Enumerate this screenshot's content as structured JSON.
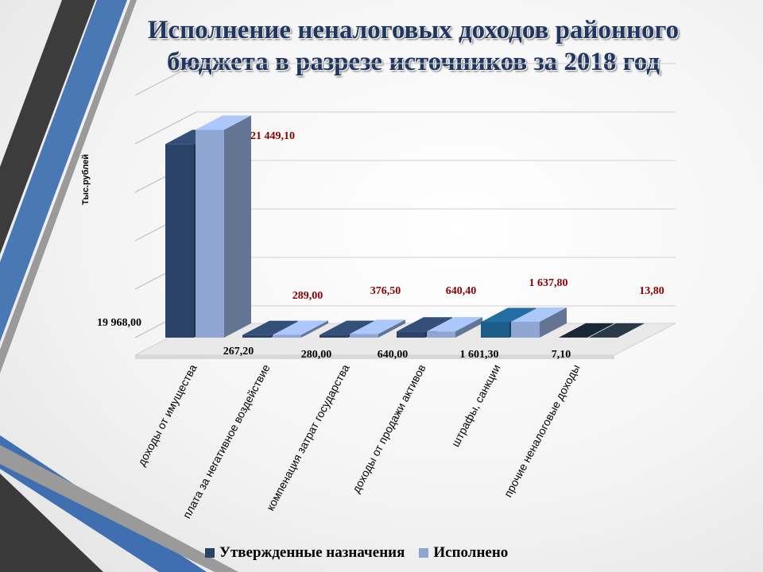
{
  "title": {
    "line1": "Исполнение неналоговых доходов районного",
    "line2": "бюджета в разрезе источников  за 2018 год"
  },
  "colors": {
    "approved": "#2b4366",
    "executed": "#8fa6d2",
    "highlight_approved": "#1c5c88",
    "dark_approved": "#15202c",
    "value_label": "#8b0000",
    "title": "#1f3660"
  },
  "chart_data": {
    "type": "bar",
    "title": "Исполнение неналоговых доходов районного бюджета в разрезе источников  за 2018 год",
    "xlabel": "",
    "ylabel": "Тыс.рублей",
    "grid": true,
    "legend_position": "bottom",
    "categories": [
      "доходы от имущества",
      "плата за негативное воздействие",
      "компенация затрат государства",
      "доходы от продажи активов",
      "штрафы, санкции",
      "прочие неналоговые доходы"
    ],
    "series": [
      {
        "name": "Утвержденные назначения",
        "values": [
          19968.0,
          267.2,
          280.0,
          640.0,
          1601.3,
          7.1
        ],
        "labels": [
          "19 968,00",
          "267,20",
          "280,00",
          "640,00",
          "1 601,30",
          "7,10"
        ]
      },
      {
        "name": "Исполнено",
        "values": [
          21449.1,
          289.0,
          376.5,
          640.4,
          1637.8,
          13.8
        ],
        "labels": [
          "21 449,10",
          "289,00",
          "376,50",
          "640,40",
          "1 637,80",
          "13,80"
        ]
      }
    ]
  }
}
